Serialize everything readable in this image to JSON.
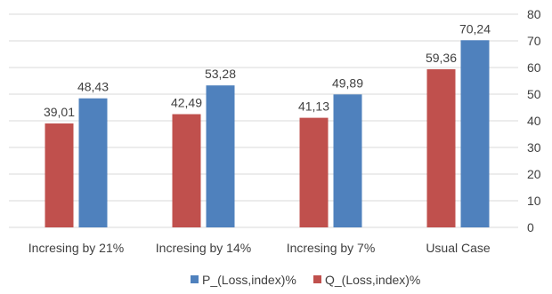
{
  "chart_data": {
    "type": "bar",
    "categories": [
      "Incresing by 21%",
      "Incresing by 14%",
      "Incresing by 7%",
      "Usual Case"
    ],
    "series": [
      {
        "name": "Q_(Loss,index)%",
        "color": "#c0504d",
        "values": [
          39.01,
          42.49,
          41.13,
          59.36
        ],
        "labels": [
          "39,01",
          "42,49",
          "41,13",
          "59,36"
        ]
      },
      {
        "name": "P_(Loss,index)%",
        "color": "#4f81bd",
        "values": [
          48.43,
          53.28,
          49.89,
          70.24
        ],
        "labels": [
          "48,43",
          "53,28",
          "49,89",
          "70,24"
        ]
      }
    ],
    "legend_order": [
      "P_(Loss,index)%",
      "Q_(Loss,index)%"
    ],
    "y_axis": {
      "position": "right",
      "ylim": [
        0,
        80
      ],
      "ticks": [
        0,
        10,
        20,
        30,
        40,
        50,
        60,
        70,
        80
      ]
    },
    "grid": true,
    "legend_position": "bottom"
  }
}
